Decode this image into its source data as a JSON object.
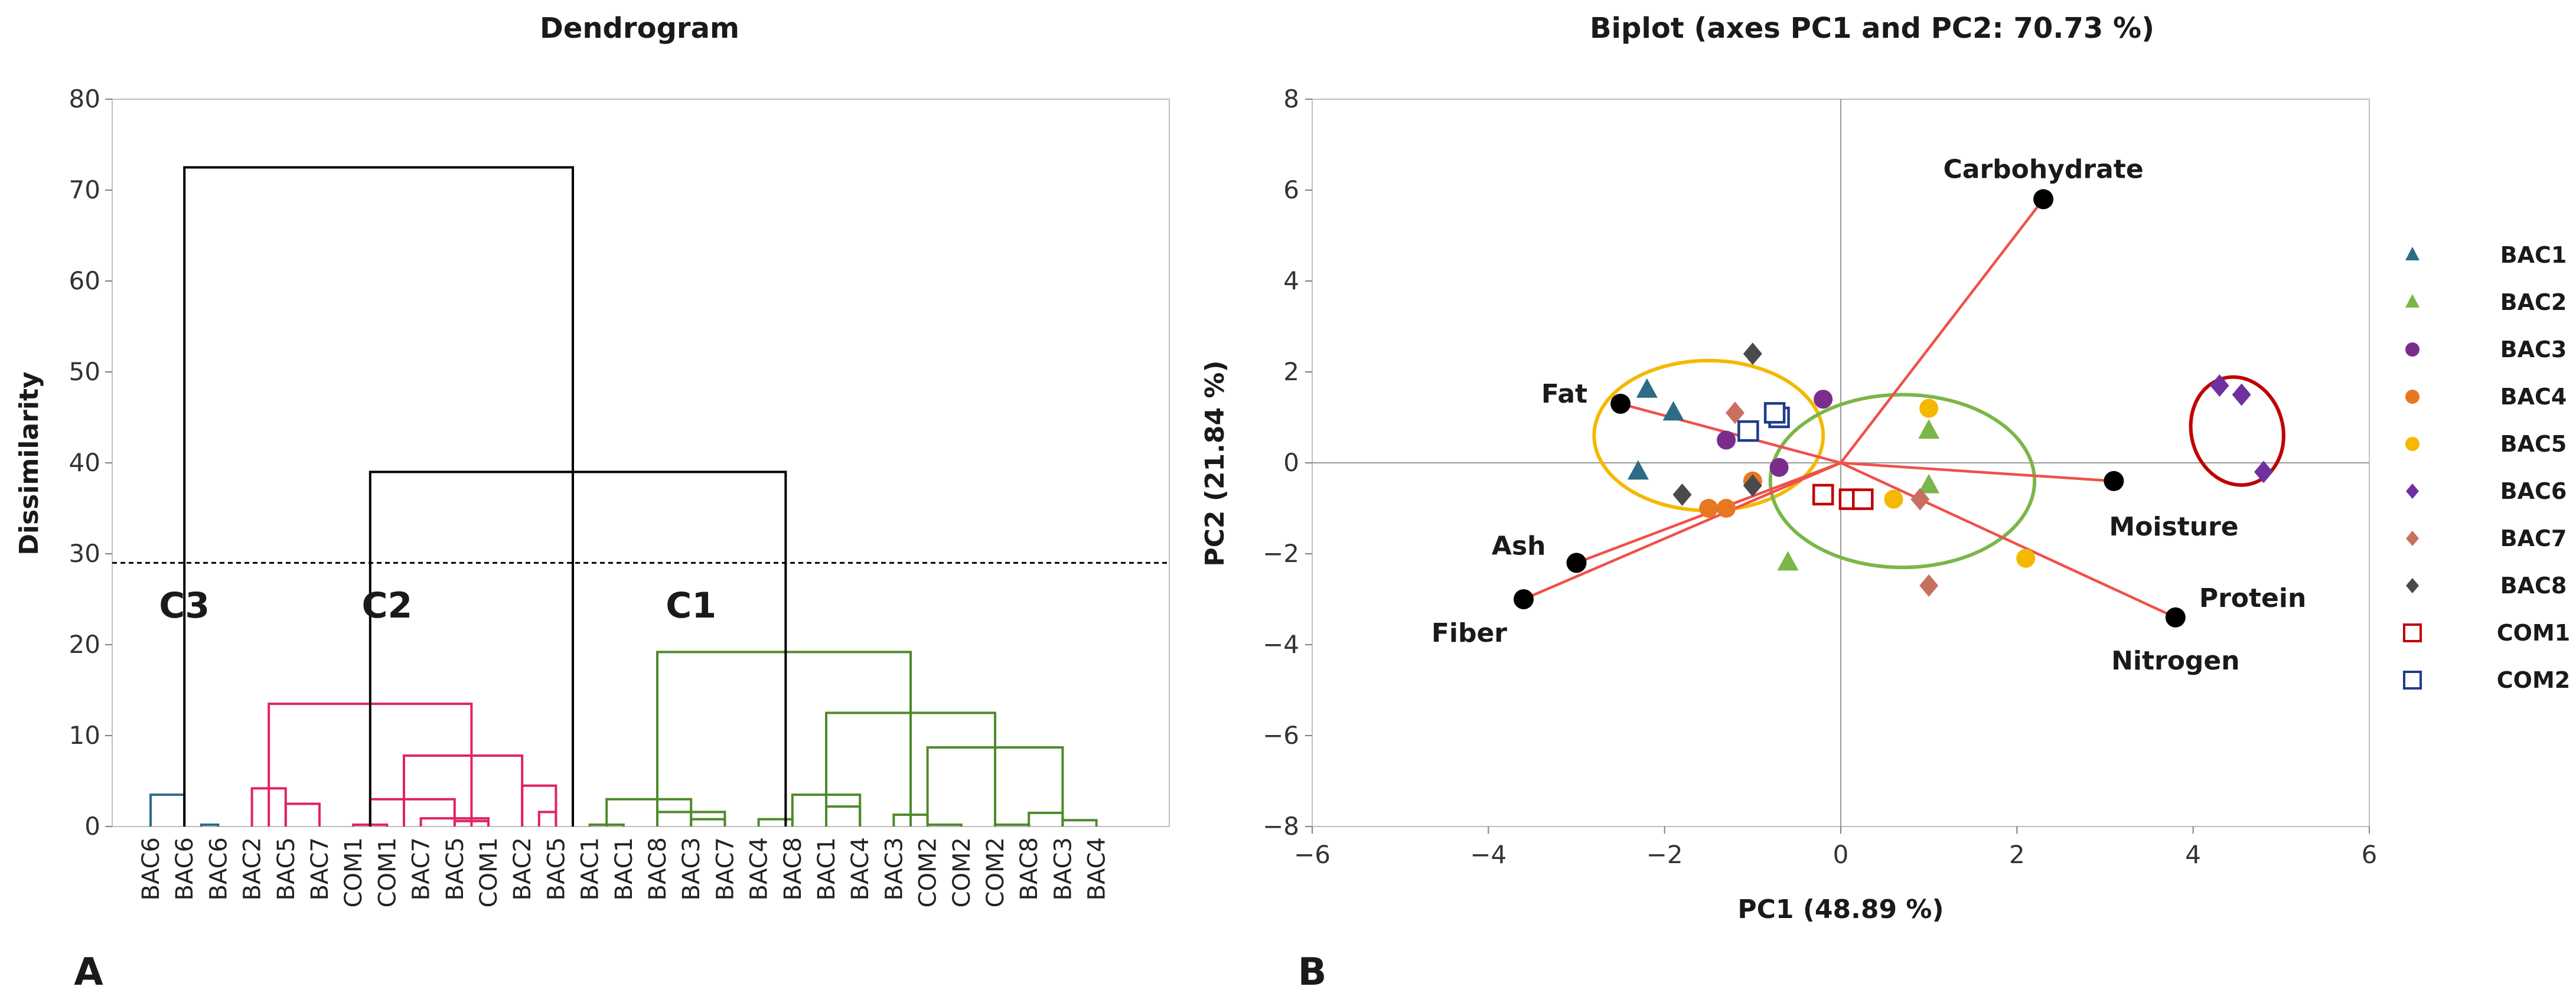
{
  "panels": {
    "a": {
      "label": "A"
    },
    "b": {
      "label": "B"
    }
  },
  "chart_data": [
    {
      "type": "dendrogram",
      "title": "Dendrogram",
      "ylabel": "Dissimilarity",
      "ylim": [
        0,
        80
      ],
      "yticks": [
        0,
        10,
        20,
        30,
        40,
        50,
        60,
        70,
        80
      ],
      "truncation_line": 29,
      "leaves": [
        "BAC6",
        "BAC6",
        "BAC6",
        "BAC2",
        "BAC5",
        "BAC7",
        "COM1",
        "COM1",
        "BAC7",
        "BAC5",
        "COM1",
        "BAC2",
        "BAC5",
        "BAC1",
        "BAC1",
        "BAC8",
        "BAC3",
        "BAC7",
        "BAC4",
        "BAC8",
        "BAC1",
        "BAC4",
        "BAC3",
        "COM2",
        "COM2",
        "COM2",
        "BAC8",
        "BAC3",
        "BAC4"
      ],
      "clusters": [
        {
          "name": "C3",
          "color": "#2e6b84"
        },
        {
          "name": "C2",
          "color": "#e0245e"
        },
        {
          "name": "C1",
          "color": "#4e8a2a"
        }
      ],
      "links": [
        {
          "left": 0,
          "right": 1,
          "height": 3.5,
          "cluster": 0
        },
        {
          "left": 1.5,
          "right": 2,
          "height": 0.2,
          "cluster": 0
        },
        {
          "left": 3,
          "right": 4,
          "height": 4.2,
          "cluster": 1
        },
        {
          "left": 4,
          "right": 5,
          "height": 2.5,
          "cluster": 1
        },
        {
          "left": 6,
          "right": 7,
          "height": 0.2,
          "cluster": 1
        },
        {
          "left": 6.5,
          "right": 9,
          "height": 3.0,
          "cluster": 1
        },
        {
          "left": 8,
          "right": 10,
          "height": 0.9,
          "cluster": 1
        },
        {
          "left": 9,
          "right": 10,
          "height": 0.6,
          "cluster": 1
        },
        {
          "left": 7.5,
          "right": 11,
          "height": 7.8,
          "cluster": 1
        },
        {
          "left": 11,
          "right": 12,
          "height": 4.5,
          "cluster": 1
        },
        {
          "left": 11.5,
          "right": 12,
          "height": 1.6,
          "cluster": 1
        },
        {
          "left": 3.5,
          "right": 9.5,
          "height": 13.5,
          "cluster": 1
        },
        {
          "left": 13,
          "right": 14,
          "height": 0.2,
          "cluster": 2
        },
        {
          "left": 13.5,
          "right": 16,
          "height": 3.0,
          "cluster": 2
        },
        {
          "left": 15,
          "right": 17,
          "height": 1.6,
          "cluster": 2
        },
        {
          "left": 16,
          "right": 17,
          "height": 0.8,
          "cluster": 2
        },
        {
          "left": 18,
          "right": 19,
          "height": 0.8,
          "cluster": 2
        },
        {
          "left": 19,
          "right": 21,
          "height": 3.5,
          "cluster": 2
        },
        {
          "left": 20,
          "right": 21,
          "height": 2.2,
          "cluster": 2
        },
        {
          "left": 22,
          "right": 23,
          "height": 1.3,
          "cluster": 2
        },
        {
          "left": 23,
          "right": 24,
          "height": 0.2,
          "cluster": 2
        },
        {
          "left": 25,
          "right": 26,
          "height": 0.2,
          "cluster": 2
        },
        {
          "left": 26,
          "right": 27,
          "height": 1.5,
          "cluster": 2
        },
        {
          "left": 27,
          "right": 28,
          "height": 0.7,
          "cluster": 2
        },
        {
          "left": 23,
          "right": 27,
          "height": 8.7,
          "cluster": 2
        },
        {
          "left": 20,
          "right": 25,
          "height": 12.5,
          "cluster": 2
        },
        {
          "left": 15,
          "right": 22.5,
          "height": 19.2,
          "cluster": 2
        },
        {
          "left": 6.5,
          "right": 18.8,
          "height": 39.0,
          "cluster": null
        },
        {
          "left": 1,
          "right": 12.5,
          "height": 72.5,
          "cluster": null
        }
      ],
      "cluster_labels": [
        {
          "text": "C3",
          "x": 1,
          "y": 23
        },
        {
          "text": "C2",
          "x": 7,
          "y": 23
        },
        {
          "text": "C1",
          "x": 16,
          "y": 23
        }
      ]
    },
    {
      "type": "scatter",
      "title": "Biplot (axes PC1 and PC2: 70.73 %)",
      "xlabel": "PC1 (48.89 %)",
      "ylabel": "PC2 (21.84 %)",
      "xlim": [
        -6,
        6
      ],
      "ylim": [
        -8,
        8
      ],
      "xticks": [
        -6,
        -4,
        -2,
        0,
        2,
        4,
        6
      ],
      "yticks": [
        -8,
        -6,
        -4,
        -2,
        0,
        2,
        4,
        6,
        8
      ],
      "xtick_labels": [
        "−6",
        "−4",
        "−2",
        "0",
        "2",
        "4",
        "6"
      ],
      "ytick_labels": [
        "−8",
        "−6",
        "−4",
        "−2",
        "0",
        "2",
        "4",
        "6",
        "8"
      ],
      "series": [
        {
          "name": "BAC1",
          "color": "#2e6b84",
          "marker": "triangle",
          "points": [
            [
              -2.2,
              1.6
            ],
            [
              -1.9,
              1.1
            ],
            [
              -2.3,
              -0.2
            ]
          ]
        },
        {
          "name": "BAC2",
          "color": "#7ab648",
          "marker": "triangle",
          "points": [
            [
              1.0,
              0.7
            ],
            [
              1.0,
              -0.5
            ],
            [
              -0.6,
              -2.2
            ]
          ]
        },
        {
          "name": "BAC3",
          "color": "#7b2d8e",
          "marker": "circle",
          "points": [
            [
              -1.3,
              0.5
            ],
            [
              -0.7,
              -0.1
            ],
            [
              -0.2,
              1.4
            ]
          ]
        },
        {
          "name": "BAC4",
          "color": "#e87722",
          "marker": "circle",
          "points": [
            [
              -1.0,
              -0.4
            ],
            [
              -1.5,
              -1.0
            ],
            [
              -1.3,
              -1.0
            ]
          ]
        },
        {
          "name": "BAC5",
          "color": "#f5b800",
          "marker": "circle",
          "points": [
            [
              1.0,
              1.2
            ],
            [
              0.6,
              -0.8
            ],
            [
              2.1,
              -2.1
            ]
          ]
        },
        {
          "name": "BAC6",
          "color": "#7030a0",
          "marker": "diamond",
          "points": [
            [
              4.3,
              1.7
            ],
            [
              4.55,
              1.5
            ],
            [
              4.8,
              -0.2
            ]
          ]
        },
        {
          "name": "BAC7",
          "color": "#c87060",
          "marker": "diamond",
          "points": [
            [
              -1.2,
              1.1
            ],
            [
              0.9,
              -0.8
            ],
            [
              1.0,
              -2.7
            ]
          ]
        },
        {
          "name": "BAC8",
          "color": "#4a4a4a",
          "marker": "diamond",
          "points": [
            [
              -1.0,
              2.4
            ],
            [
              -1.8,
              -0.7
            ],
            [
              -1.0,
              -0.5
            ]
          ]
        },
        {
          "name": "COM1",
          "color": "#c00000",
          "marker": "square-open",
          "points": [
            [
              -0.2,
              -0.7
            ],
            [
              0.1,
              -0.8
            ],
            [
              0.25,
              -0.8
            ]
          ]
        },
        {
          "name": "COM2",
          "color": "#1f3c88",
          "marker": "square-open",
          "points": [
            [
              -1.05,
              0.7
            ],
            [
              -0.7,
              1.0
            ],
            [
              -0.75,
              1.1
            ]
          ]
        }
      ],
      "variables": [
        {
          "name": "Carbohydrate",
          "x": 2.3,
          "y": 5.8
        },
        {
          "name": "Fat",
          "x": -2.5,
          "y": 1.3
        },
        {
          "name": "Moisture",
          "x": 3.1,
          "y": -0.4
        },
        {
          "name": "Ash",
          "x": -3.0,
          "y": -2.2
        },
        {
          "name": "Fiber",
          "x": -3.6,
          "y": -3.0
        },
        {
          "name": "Protein",
          "x": 3.8,
          "y": -3.4
        },
        {
          "name": "Nitrogen",
          "x": 3.8,
          "y": -3.4
        }
      ],
      "ellipses": [
        {
          "color": "#f5b800",
          "cx": -1.5,
          "cy": 0.6,
          "rx": 1.3,
          "ry": 1.65,
          "rotate": 0
        },
        {
          "color": "#7ab648",
          "cx": 0.7,
          "cy": -0.4,
          "rx": 1.5,
          "ry": 1.9,
          "rotate": 0
        },
        {
          "color": "#c00000",
          "cx": 4.5,
          "cy": 0.7,
          "rx": 0.52,
          "ry": 1.2,
          "rotate": -15
        }
      ],
      "legend_position": "right"
    }
  ]
}
